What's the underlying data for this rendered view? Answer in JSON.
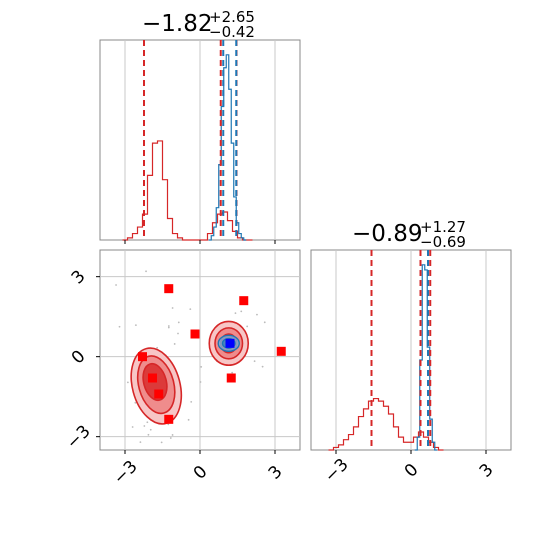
{
  "chart_data": [
    {
      "type": "histogram",
      "panel": "top-left marginal",
      "title_value": "−1.82",
      "title_plus": "+2.65",
      "title_minus": "−0.42",
      "xlim": [
        -4,
        4
      ],
      "grid": true,
      "series": [
        {
          "color": "#d62728",
          "bin_centers": [
            -3.0,
            -2.8,
            -2.6,
            -2.4,
            -2.2,
            -2.0,
            -1.8,
            -1.6,
            -1.4,
            -1.2,
            -1.0,
            -0.8,
            -0.6,
            -0.4,
            -0.2,
            0.0,
            0.2,
            0.4,
            0.6,
            0.8,
            1.0,
            1.2,
            1.4,
            1.6,
            1.8,
            2.0
          ],
          "density": [
            0.0,
            0.01,
            0.03,
            0.06,
            0.12,
            0.3,
            0.45,
            0.46,
            0.28,
            0.1,
            0.03,
            0.01,
            0.0,
            0.0,
            0.0,
            0.0,
            0.0,
            0.03,
            0.08,
            0.12,
            0.13,
            0.09,
            0.04,
            0.01,
            0.0,
            0.0
          ],
          "quantile_lines": [
            -2.24,
            0.83,
            1.46
          ]
        },
        {
          "color": "#1f77b4",
          "bin_centers": [
            0.4,
            0.5,
            0.6,
            0.7,
            0.8,
            0.9,
            1.0,
            1.1,
            1.2,
            1.3,
            1.4,
            1.5,
            1.6,
            1.7,
            1.8
          ],
          "density": [
            0.0,
            0.02,
            0.06,
            0.15,
            0.35,
            0.62,
            0.8,
            0.86,
            0.7,
            0.45,
            0.2,
            0.08,
            0.03,
            0.01,
            0.0
          ],
          "quantile_lines": [
            0.93,
            1.45
          ]
        }
      ]
    },
    {
      "type": "histogram",
      "panel": "bottom-right marginal",
      "title_value": "−0.89",
      "title_plus": "+1.27",
      "title_minus": "−0.69",
      "xlim": [
        -4,
        4
      ],
      "x_ticks": [
        -3,
        0,
        3
      ],
      "grid": true,
      "series": [
        {
          "color": "#d62728",
          "bin_centers": [
            -3.2,
            -3.0,
            -2.8,
            -2.6,
            -2.4,
            -2.2,
            -2.0,
            -1.8,
            -1.6,
            -1.4,
            -1.2,
            -1.0,
            -0.8,
            -0.6,
            -0.4,
            -0.2,
            0.0,
            0.2,
            0.4,
            0.6,
            0.8,
            1.0,
            1.2
          ],
          "density": [
            0.0,
            0.01,
            0.02,
            0.04,
            0.06,
            0.09,
            0.13,
            0.16,
            0.19,
            0.2,
            0.19,
            0.17,
            0.14,
            0.09,
            0.05,
            0.03,
            0.03,
            0.05,
            0.07,
            0.05,
            0.03,
            0.01,
            0.0
          ],
          "quantile_lines": [
            -1.58,
            0.38,
            0.77
          ]
        },
        {
          "color": "#1f77b4",
          "bin_centers": [
            0.2,
            0.3,
            0.4,
            0.5,
            0.6,
            0.7,
            0.8,
            0.9,
            1.0
          ],
          "density": [
            0.0,
            0.05,
            0.35,
            0.72,
            0.7,
            0.4,
            0.12,
            0.03,
            0.0
          ],
          "quantile_lines": [
            0.68
          ]
        }
      ]
    },
    {
      "type": "scatter",
      "panel": "bottom-left joint",
      "xlim": [
        -4,
        4
      ],
      "ylim": [
        -3.5,
        4
      ],
      "x_ticks": [
        -3,
        0,
        3
      ],
      "y_ticks": [
        3,
        0,
        -3
      ],
      "grid": true,
      "red_contours": [
        {
          "cx": -1.75,
          "cy": -1.1,
          "rx": 0.95,
          "ry": 1.45,
          "rot": -15,
          "level": 3
        },
        {
          "cx": -1.75,
          "cy": -1.05,
          "rx": 0.7,
          "ry": 1.1,
          "rot": -15,
          "level": 2
        },
        {
          "cx": -1.8,
          "cy": -0.95,
          "rx": 0.45,
          "ry": 0.7,
          "rot": -15,
          "level": 1
        },
        {
          "cx": 1.15,
          "cy": 0.5,
          "rx": 0.78,
          "ry": 0.82,
          "rot": 0,
          "level": 3
        },
        {
          "cx": 1.15,
          "cy": 0.5,
          "rx": 0.55,
          "ry": 0.58,
          "rot": 0,
          "level": 2
        },
        {
          "cx": 1.15,
          "cy": 0.5,
          "rx": 0.32,
          "ry": 0.35,
          "rot": 0,
          "level": 1
        }
      ],
      "blue_contours": [
        {
          "cx": 1.15,
          "cy": 0.5,
          "rx": 0.42,
          "ry": 0.3,
          "rot": 0,
          "level": 2
        },
        {
          "cx": 1.15,
          "cy": 0.5,
          "rx": 0.25,
          "ry": 0.18,
          "rot": 0,
          "level": 1
        }
      ],
      "red_markers": [
        {
          "x": -2.3,
          "y": 0.0
        },
        {
          "x": -1.9,
          "y": -0.8
        },
        {
          "x": -1.65,
          "y": -1.4
        },
        {
          "x": -1.25,
          "y": -2.35
        },
        {
          "x": -1.25,
          "y": 2.55
        },
        {
          "x": -0.2,
          "y": 0.85
        },
        {
          "x": 1.75,
          "y": 2.1
        },
        {
          "x": 1.25,
          "y": -0.8
        },
        {
          "x": 3.25,
          "y": 0.2
        }
      ],
      "blue_marker": {
        "x": 1.2,
        "y": 0.5
      }
    }
  ]
}
